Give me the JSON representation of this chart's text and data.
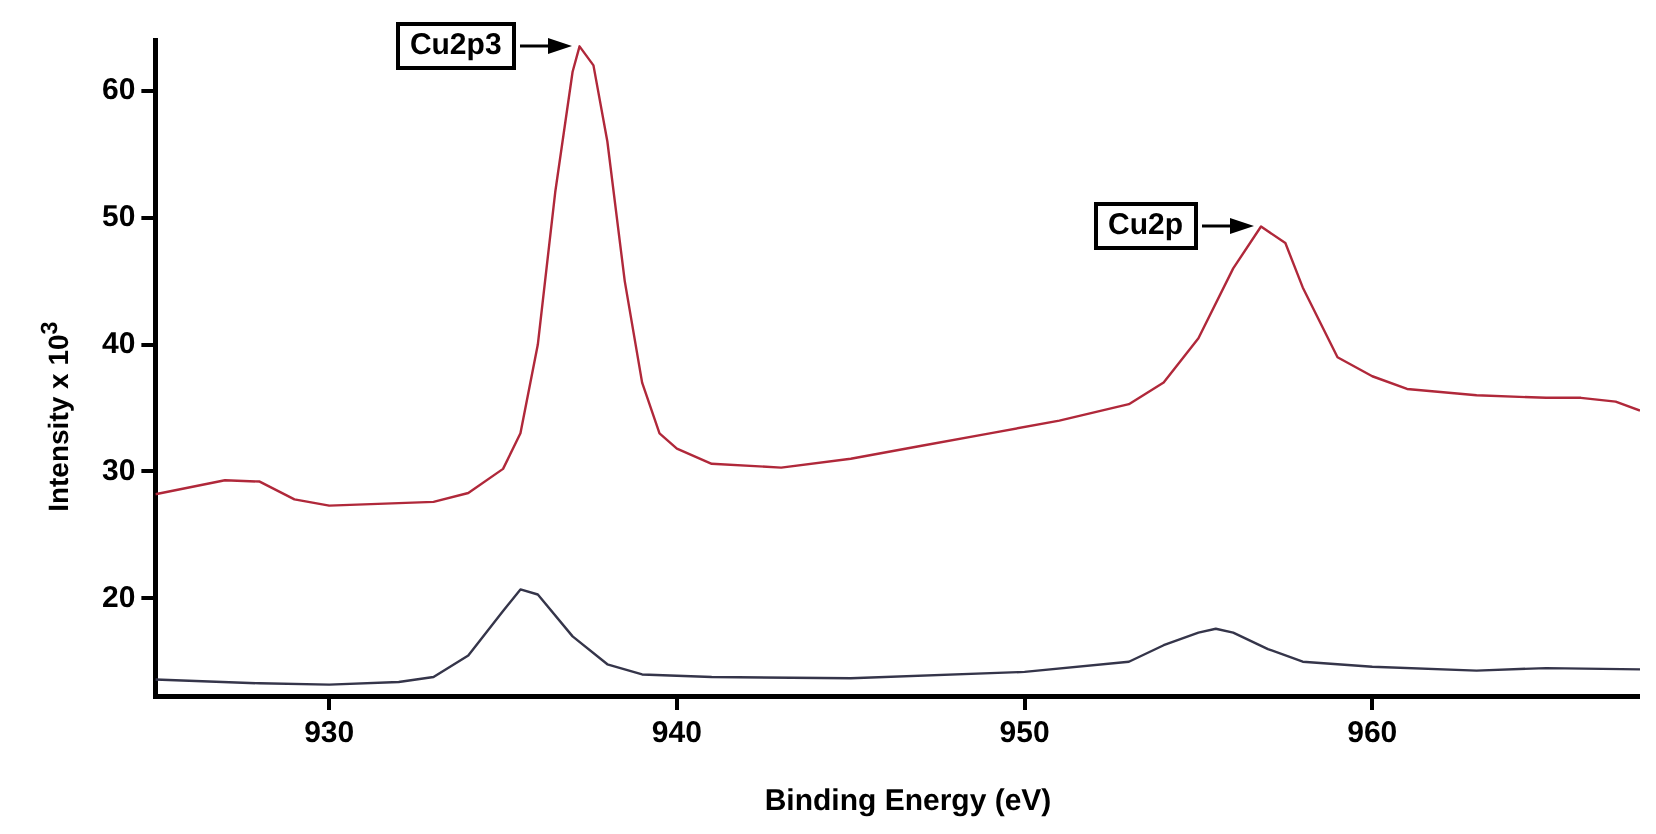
{
  "chart_data": {
    "type": "line",
    "xlabel": "Binding Energy (eV)",
    "ylabel": "Intensity x 10$^{3}$",
    "xlim": [
      925,
      967.7
    ],
    "xticks": [
      930,
      940,
      950,
      960
    ],
    "ylim": [
      12.3,
      64
    ],
    "yticks": [
      20,
      30,
      40,
      50,
      60
    ],
    "grid": false,
    "legend": false,
    "marker": "none",
    "line_style": "solid",
    "annotations": [
      {
        "text": "Cu2p3",
        "x": 937.2,
        "y": 63.5
      },
      {
        "text": "Cu2p",
        "x": 956.8,
        "y": 49.3
      }
    ],
    "series": [
      {
        "color": "#b0283a",
        "x": [
          925,
          927,
          928,
          929,
          930,
          932,
          933,
          934,
          935,
          935.5,
          936,
          936.5,
          937,
          937.2,
          937.6,
          938,
          938.5,
          939,
          939.5,
          940,
          941,
          943,
          945,
          947,
          949,
          951,
          953,
          954,
          955,
          956,
          956.8,
          957.5,
          958,
          959,
          960,
          961,
          963,
          965,
          966,
          967,
          967.7
        ],
        "values": [
          28.2,
          29.3,
          29.2,
          27.8,
          27.3,
          27.5,
          27.6,
          28.3,
          30.2,
          33,
          40,
          52,
          61.5,
          63.5,
          62,
          56,
          45,
          37,
          33,
          31.8,
          30.6,
          30.3,
          31,
          32,
          33,
          34,
          35.3,
          37,
          40.5,
          46,
          49.3,
          48,
          44.5,
          39,
          37.5,
          36.5,
          36,
          35.8,
          35.8,
          35.5,
          34.8
        ]
      },
      {
        "color": "#35354a",
        "x": [
          925,
          928,
          930,
          932,
          933,
          934,
          935,
          935.5,
          936,
          937,
          938,
          939,
          941,
          945,
          950,
          953,
          954,
          955,
          955.5,
          956,
          957,
          958,
          960,
          963,
          965,
          967.7
        ],
        "values": [
          13.6,
          13.3,
          13.2,
          13.4,
          13.8,
          15.5,
          19,
          20.7,
          20.3,
          17,
          14.8,
          14,
          13.8,
          13.7,
          14.2,
          15,
          16.3,
          17.3,
          17.6,
          17.3,
          16,
          15,
          14.6,
          14.3,
          14.5,
          14.4
        ]
      }
    ]
  }
}
